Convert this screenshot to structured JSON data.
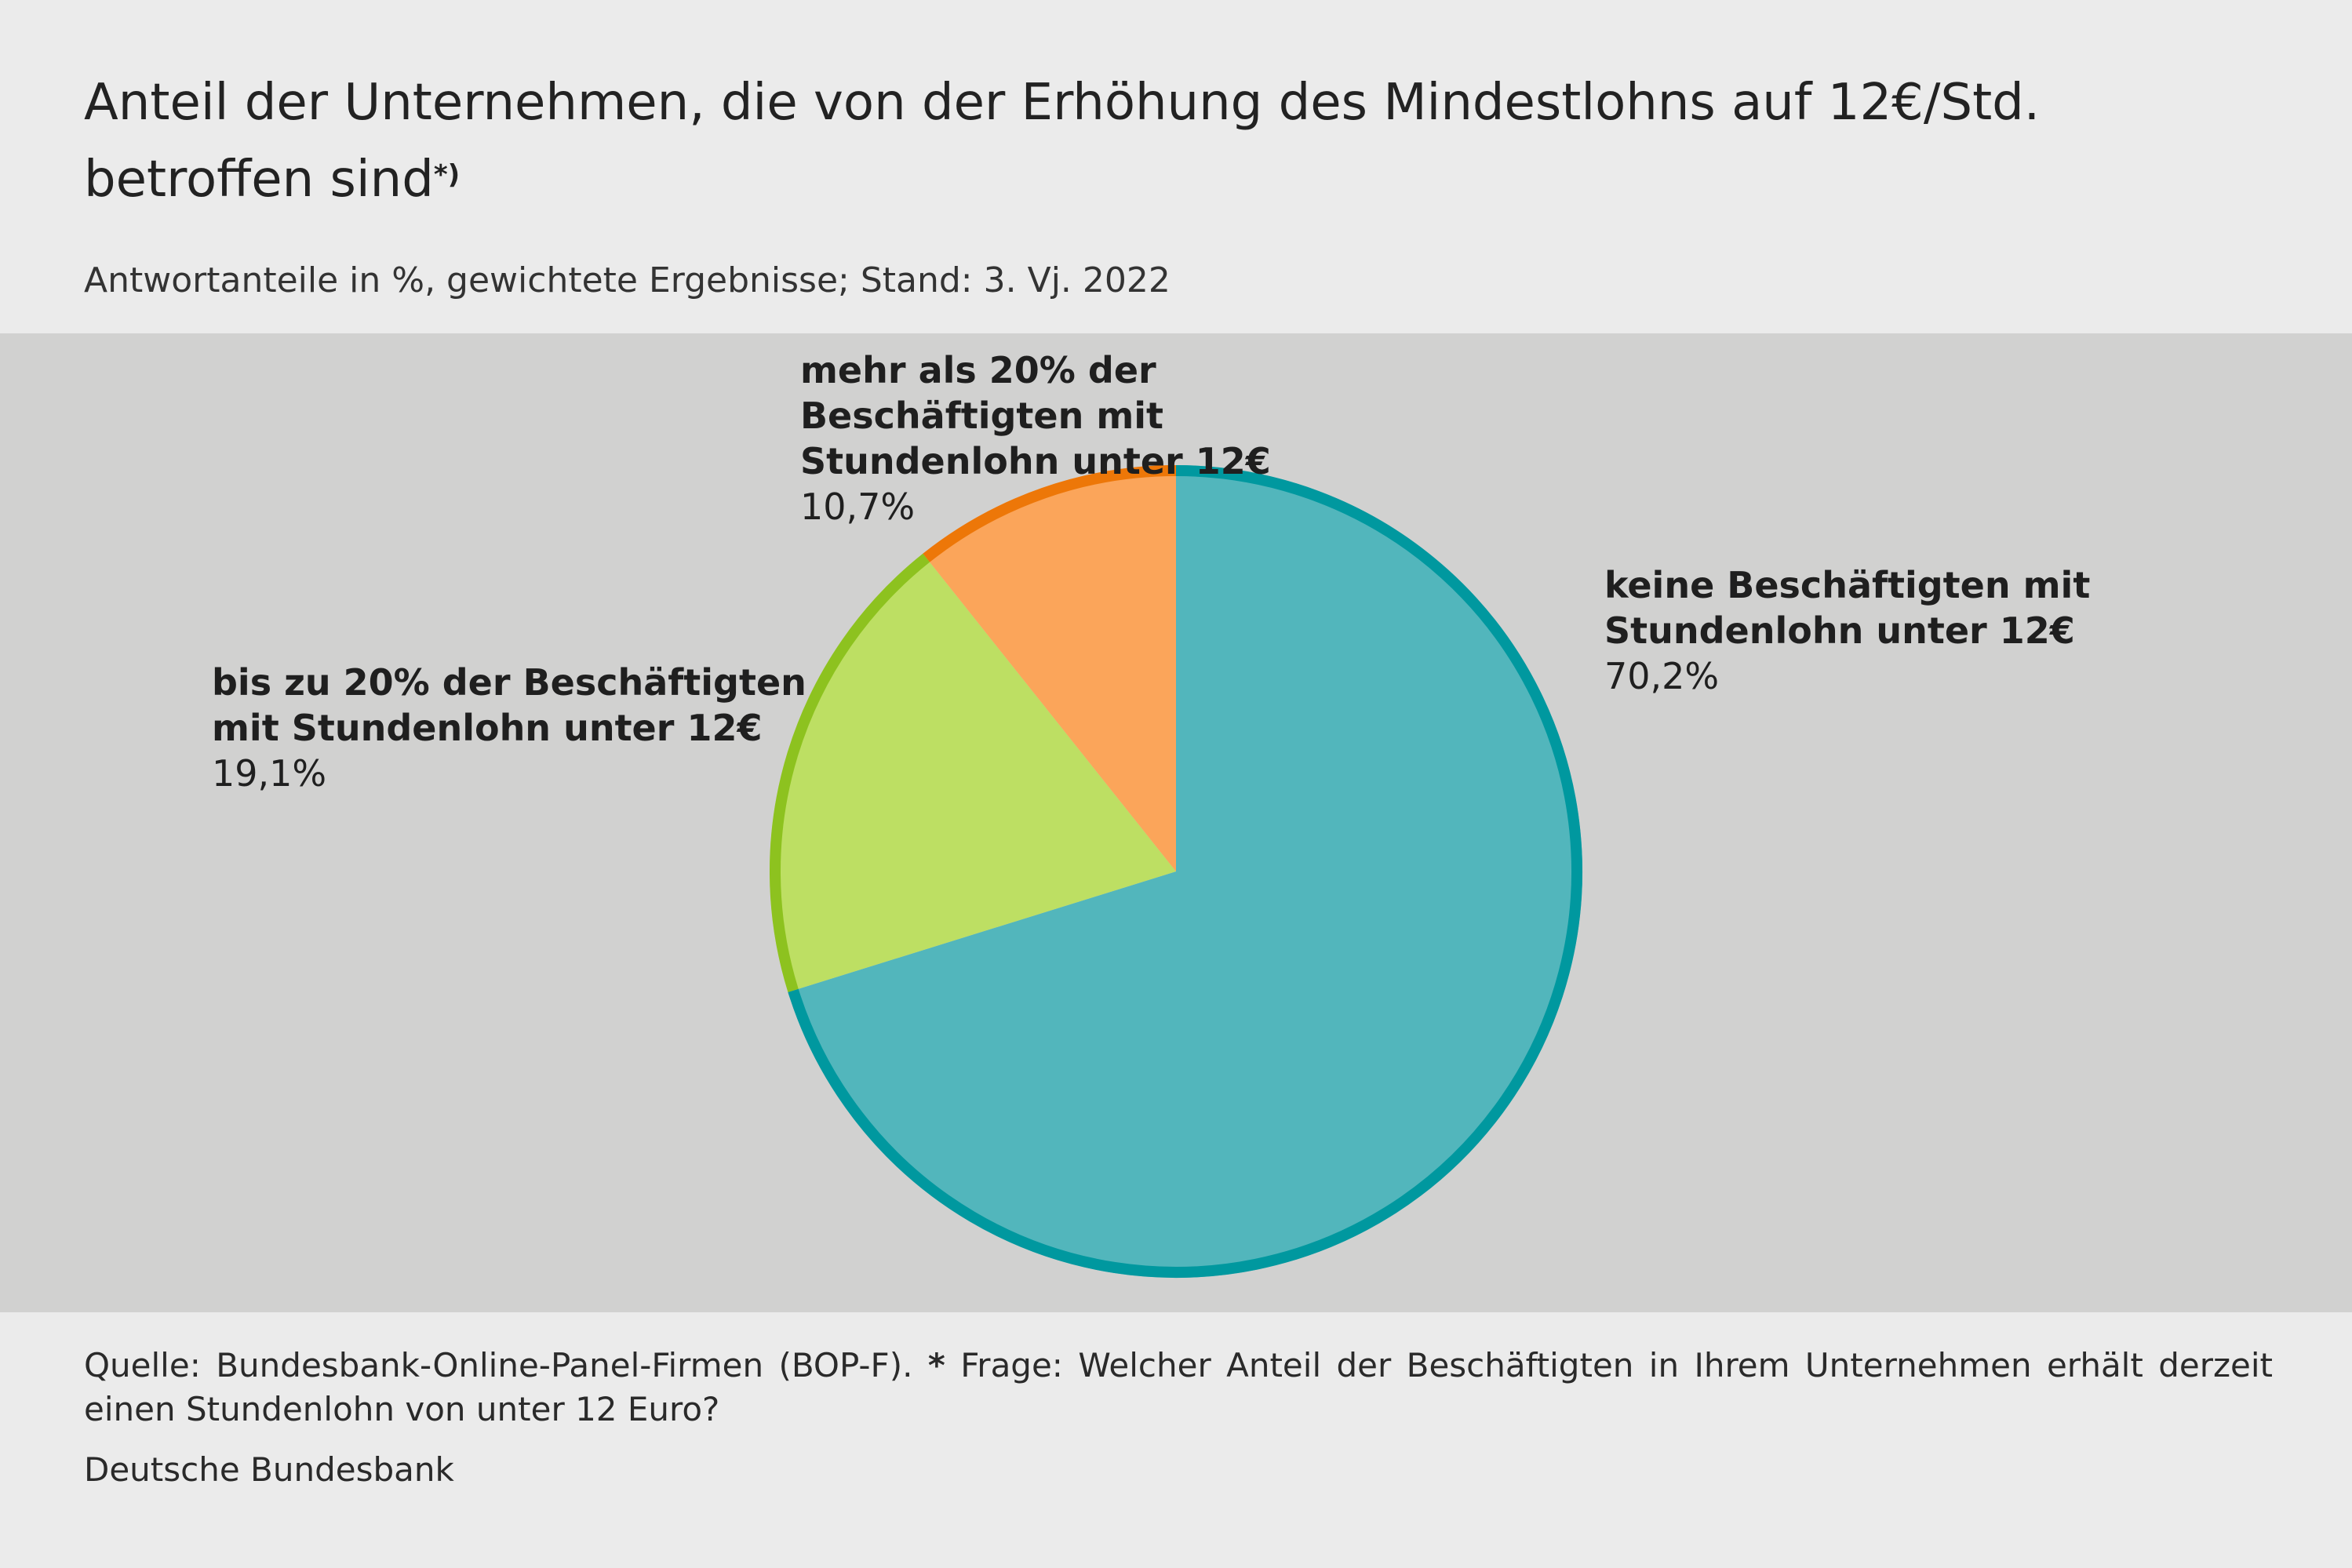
{
  "header": {
    "title": "Anteil der Unternehmen, die von der Erhöhung des Mindestlohns auf 12€/Std. betroffen sind",
    "title_note": "*)",
    "subtitle": "Antwortanteile in %, gewichtete Ergebnisse; Stand: 3. Vj. 2022"
  },
  "chart_data": {
    "type": "pie",
    "title": "Anteil der Unternehmen, die von der Erhöhung des Mindestlohns auf 12€/Std. betroffen sind",
    "start": "12 o'clock, clockwise",
    "slices": [
      {
        "name": "keine Beschäftigten mit Stundenlohn unter 12€",
        "value": 70.2,
        "value_label": "70,2%",
        "fill": "#52b6bc",
        "stroke": "#00989f"
      },
      {
        "name": "bis zu 20% der Beschäftigten mit Stundenlohn unter 12€",
        "value": 19.1,
        "value_label": "19,1%",
        "fill": "#bddf63",
        "stroke": "#8dc21f"
      },
      {
        "name": "mehr als 20% der Beschäftigten mit Stundenlohn unter 12€",
        "value": 10.7,
        "value_label": "10,7%",
        "fill": "#fba55a",
        "stroke": "#ed7708"
      }
    ]
  },
  "footer": {
    "source_prefix": "Quelle: Bundesbank-Online-Panel-Firmen (BOP-F).",
    "source_star": "*",
    "source_question": "Frage: Welcher Anteil der Beschäftigten in Ihrem Unternehmen erhält derzeit einen Stundenlohn von unter 12 Euro?",
    "publisher": "Deutsche Bundesbank"
  }
}
